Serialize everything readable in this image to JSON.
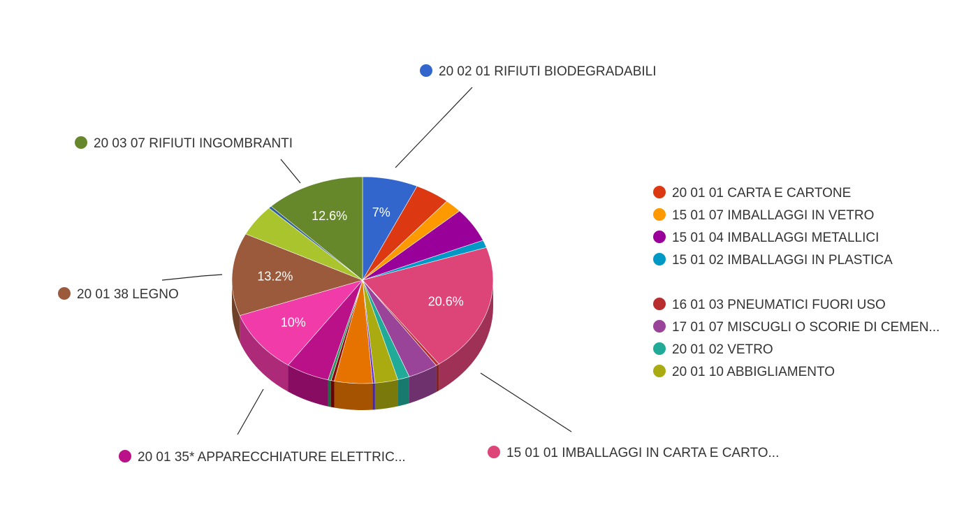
{
  "chart_data": {
    "type": "pie",
    "title": "",
    "slices": [
      {
        "label": "20 02 01 RIFIUTI BIODEGRADABILI",
        "value": 7.0,
        "display": "7%",
        "color": "#3366cc"
      },
      {
        "label": "20 01 01 CARTA E CARTONE",
        "value": 4.4,
        "display": "",
        "color": "#dc3912"
      },
      {
        "label": "15 01 07 IMBALLAGGI IN VETRO",
        "value": 2.2,
        "display": "",
        "color": "#ff9900"
      },
      {
        "label": "15 01 04 IMBALLAGGI METALLICI",
        "value": 5.5,
        "display": "",
        "color": "#990099"
      },
      {
        "label": "15 01 02 IMBALLAGGI IN PLASTICA",
        "value": 1.2,
        "display": "",
        "color": "#0099c6"
      },
      {
        "label": "15 01 01 IMBALLAGGI IN CARTA E CARTO...",
        "value": 20.6,
        "display": "20.6%",
        "color": "#dd4477"
      },
      {
        "label": "16 01 03 PNEUMATICI FUORI USO",
        "value": 0.4,
        "display": "",
        "color": "#b82e2e"
      },
      {
        "label": "17 01 07 MISCUGLI O SCORIE DI CEMEN...",
        "value": 3.8,
        "display": "",
        "color": "#994499"
      },
      {
        "label": "20 01 02 VETRO",
        "value": 1.5,
        "display": "",
        "color": "#22aa99"
      },
      {
        "label": "20 01 10 ABBIGLIAMENTO",
        "value": 2.9,
        "display": "",
        "color": "#aaaa11"
      },
      {
        "label": "",
        "value": 0.3,
        "display": "",
        "color": "#6633cc"
      },
      {
        "label": "",
        "value": 4.8,
        "display": "",
        "color": "#e67300"
      },
      {
        "label": "",
        "value": 0.4,
        "display": "",
        "color": "#8b0707"
      },
      {
        "label": "",
        "value": 0.4,
        "display": "",
        "color": "#329262"
      },
      {
        "label": "20 01 35* APPARECCHIATURE ELETTRIC...",
        "value": 5.5,
        "display": "",
        "color": "#bb1188"
      },
      {
        "label": "",
        "value": 10.0,
        "display": "10%",
        "color": "#f03ba8"
      },
      {
        "label": "20 01 38 LEGNO",
        "value": 13.2,
        "display": "13.2%",
        "color": "#9a5a3b"
      },
      {
        "label": "",
        "value": 5.0,
        "display": "",
        "color": "#a9c42c"
      },
      {
        "label": "",
        "value": 0.4,
        "display": "",
        "color": "#316395"
      },
      {
        "label": "20 03 07 RIFIUTI INGOMBRANTI",
        "value": 12.6,
        "display": "12.6%",
        "color": "#66882a"
      }
    ],
    "legend": {
      "position": "right",
      "groups": [
        [
          {
            "label": "20 01 01 CARTA E CARTONE",
            "color": "#dc3912"
          },
          {
            "label": "15 01 07 IMBALLAGGI IN VETRO",
            "color": "#ff9900"
          },
          {
            "label": "15 01 04 IMBALLAGGI METALLICI",
            "color": "#990099"
          },
          {
            "label": "15 01 02 IMBALLAGGI IN PLASTICA",
            "color": "#0099c6"
          }
        ],
        [
          {
            "label": "16 01 03 PNEUMATICI FUORI USO",
            "color": "#b82e2e"
          },
          {
            "label": "17 01 07 MISCUGLI O SCORIE DI CEMEN...",
            "color": "#994499"
          },
          {
            "label": "20 01 02 VETRO",
            "color": "#22aa99"
          },
          {
            "label": "20 01 10 ABBIGLIAMENTO",
            "color": "#aaaa11"
          }
        ]
      ]
    },
    "callouts": [
      {
        "label": "20 02 01 RIFIUTI BIODEGRADABILI",
        "color": "#3366cc"
      },
      {
        "label": "20 03 07 RIFIUTI INGOMBRANTI",
        "color": "#66882a"
      },
      {
        "label": "20 01 38 LEGNO",
        "color": "#9a5a3b"
      },
      {
        "label": "20 01 35* APPARECCHIATURE ELETTRIC...",
        "color": "#bb1188"
      },
      {
        "label": "15 01 01 IMBALLAGGI IN CARTA E CARTO...",
        "color": "#dd4477"
      }
    ]
  }
}
